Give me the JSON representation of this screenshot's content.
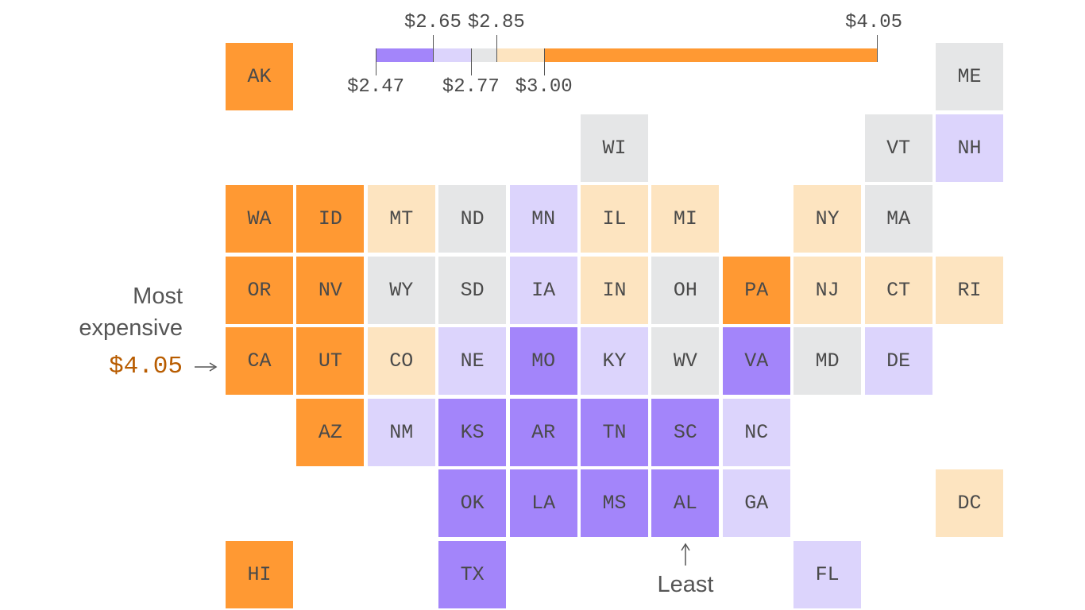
{
  "chart_data": {
    "type": "tile-map",
    "colors": [
      "#A385FA",
      "#DCD4FC",
      "#E5E6E7",
      "#FDE4C0",
      "#FF9933"
    ],
    "legend_breaks": [
      2.47,
      2.65,
      2.77,
      2.85,
      3.0,
      4.05
    ],
    "legend_labels": [
      "$2.47",
      "$2.65",
      "$2.77",
      "$2.85",
      "$3.00",
      "$4.05"
    ],
    "states": [
      {
        "s": "AK",
        "r": 0,
        "c": 0,
        "k": 4
      },
      {
        "s": "ME",
        "r": 0,
        "c": 10,
        "k": 2
      },
      {
        "s": "WI",
        "r": 1,
        "c": 5,
        "k": 2
      },
      {
        "s": "VT",
        "r": 1,
        "c": 9,
        "k": 2
      },
      {
        "s": "NH",
        "r": 1,
        "c": 10,
        "k": 1
      },
      {
        "s": "WA",
        "r": 2,
        "c": 0,
        "k": 4
      },
      {
        "s": "ID",
        "r": 2,
        "c": 1,
        "k": 4
      },
      {
        "s": "MT",
        "r": 2,
        "c": 2,
        "k": 3
      },
      {
        "s": "ND",
        "r": 2,
        "c": 3,
        "k": 2
      },
      {
        "s": "MN",
        "r": 2,
        "c": 4,
        "k": 1
      },
      {
        "s": "IL",
        "r": 2,
        "c": 5,
        "k": 3
      },
      {
        "s": "MI",
        "r": 2,
        "c": 6,
        "k": 3
      },
      {
        "s": "NY",
        "r": 2,
        "c": 8,
        "k": 3
      },
      {
        "s": "MA",
        "r": 2,
        "c": 9,
        "k": 2
      },
      {
        "s": "OR",
        "r": 3,
        "c": 0,
        "k": 4
      },
      {
        "s": "NV",
        "r": 3,
        "c": 1,
        "k": 4
      },
      {
        "s": "WY",
        "r": 3,
        "c": 2,
        "k": 2
      },
      {
        "s": "SD",
        "r": 3,
        "c": 3,
        "k": 2
      },
      {
        "s": "IA",
        "r": 3,
        "c": 4,
        "k": 1
      },
      {
        "s": "IN",
        "r": 3,
        "c": 5,
        "k": 3
      },
      {
        "s": "OH",
        "r": 3,
        "c": 6,
        "k": 2
      },
      {
        "s": "PA",
        "r": 3,
        "c": 7,
        "k": 4
      },
      {
        "s": "NJ",
        "r": 3,
        "c": 8,
        "k": 3
      },
      {
        "s": "CT",
        "r": 3,
        "c": 9,
        "k": 3
      },
      {
        "s": "RI",
        "r": 3,
        "c": 10,
        "k": 3
      },
      {
        "s": "CA",
        "r": 4,
        "c": 0,
        "k": 4
      },
      {
        "s": "UT",
        "r": 4,
        "c": 1,
        "k": 4
      },
      {
        "s": "CO",
        "r": 4,
        "c": 2,
        "k": 3
      },
      {
        "s": "NE",
        "r": 4,
        "c": 3,
        "k": 1
      },
      {
        "s": "MO",
        "r": 4,
        "c": 4,
        "k": 0
      },
      {
        "s": "KY",
        "r": 4,
        "c": 5,
        "k": 1
      },
      {
        "s": "WV",
        "r": 4,
        "c": 6,
        "k": 2
      },
      {
        "s": "VA",
        "r": 4,
        "c": 7,
        "k": 0
      },
      {
        "s": "MD",
        "r": 4,
        "c": 8,
        "k": 2
      },
      {
        "s": "DE",
        "r": 4,
        "c": 9,
        "k": 1
      },
      {
        "s": "AZ",
        "r": 5,
        "c": 1,
        "k": 4
      },
      {
        "s": "NM",
        "r": 5,
        "c": 2,
        "k": 1
      },
      {
        "s": "KS",
        "r": 5,
        "c": 3,
        "k": 0
      },
      {
        "s": "AR",
        "r": 5,
        "c": 4,
        "k": 0
      },
      {
        "s": "TN",
        "r": 5,
        "c": 5,
        "k": 0
      },
      {
        "s": "SC",
        "r": 5,
        "c": 6,
        "k": 0
      },
      {
        "s": "NC",
        "r": 5,
        "c": 7,
        "k": 1
      },
      {
        "s": "OK",
        "r": 6,
        "c": 3,
        "k": 0
      },
      {
        "s": "LA",
        "r": 6,
        "c": 4,
        "k": 0
      },
      {
        "s": "MS",
        "r": 6,
        "c": 5,
        "k": 0
      },
      {
        "s": "AL",
        "r": 6,
        "c": 6,
        "k": 0
      },
      {
        "s": "GA",
        "r": 6,
        "c": 7,
        "k": 1
      },
      {
        "s": "DC",
        "r": 6,
        "c": 10,
        "k": 3
      },
      {
        "s": "HI",
        "r": 7,
        "c": 0,
        "k": 4
      },
      {
        "s": "TX",
        "r": 7,
        "c": 3,
        "k": 0
      },
      {
        "s": "FL",
        "r": 7,
        "c": 8,
        "k": 1
      }
    ]
  },
  "annotations": {
    "most_line1": "Most",
    "most_line2": "expensive",
    "most_value": "$4.05",
    "most_value_color": "#B85C00",
    "least": "Least"
  }
}
